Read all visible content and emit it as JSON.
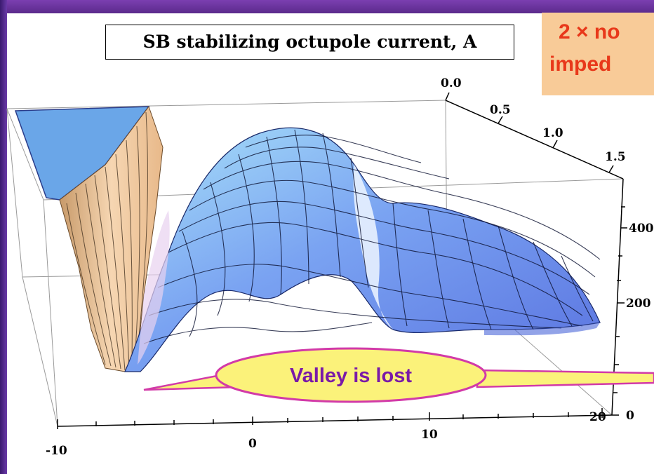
{
  "slide": {
    "note_line1": "2 × no",
    "note_line2": "imped",
    "callout": "Valley is lost"
  },
  "colors": {
    "frame_purple": "#6a3aa8",
    "note_bg": "#f8cb98",
    "note_text": "#e8381a",
    "callout_fill": "#fbf27a",
    "callout_stroke": "#d23aa8",
    "callout_text": "#7a1aa8",
    "surface_blue": "#6f8ff0",
    "surface_light": "#9fd8f4",
    "surface_tan": "#f2c99c"
  },
  "chart_data": {
    "type": "surface",
    "title": "SB stabilizing octupole current, A",
    "x_ticks": [
      "-10",
      "0",
      "10",
      "20"
    ],
    "y_ticks": [
      "0.0",
      "0.5",
      "1.0",
      "1.5"
    ],
    "z_ticks": [
      "0",
      "200",
      "400"
    ],
    "x_range": [
      -10,
      20
    ],
    "y_range": [
      0.0,
      1.5
    ],
    "z_range": [
      0,
      500
    ],
    "grid": false,
    "surface_description_points": [
      {
        "x": -10,
        "y": 0.0,
        "z": 500
      },
      {
        "x": -7,
        "y": 0.8,
        "z": 20
      },
      {
        "x": -2,
        "y": 0.6,
        "z": 460
      },
      {
        "x": 5,
        "y": 0.8,
        "z": 200
      },
      {
        "x": 8,
        "y": 0.6,
        "z": 330
      },
      {
        "x": 20,
        "y": 1.0,
        "z": 160
      }
    ]
  }
}
